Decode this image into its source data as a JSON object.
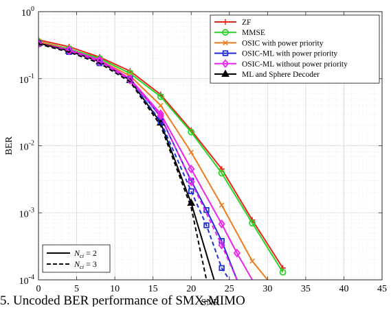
{
  "chart_data": {
    "type": "line",
    "xlabel": "SNR",
    "ylabel": "BER",
    "xlim": [
      0,
      45
    ],
    "ylim": [
      0.0001,
      1
    ],
    "yscale": "log",
    "grid": true,
    "minor_grid": true,
    "x_ticks": [
      0,
      5,
      10,
      15,
      20,
      25,
      30,
      35,
      40,
      45
    ],
    "y_ticks": [
      {
        "value": 1,
        "base": "10",
        "exp": "0"
      },
      {
        "value": 0.1,
        "base": "10",
        "exp": "-1"
      },
      {
        "value": 0.01,
        "base": "10",
        "exp": "-2"
      },
      {
        "value": 0.001,
        "base": "10",
        "exp": "-3"
      },
      {
        "value": 0.0001,
        "base": "10",
        "exp": "-4"
      }
    ],
    "legend_position": "top-right",
    "series": [
      {
        "name": "ZF",
        "color": "#e8231c",
        "marker": "plus",
        "dash": "solid",
        "x": [
          0,
          4,
          8,
          12,
          16,
          20,
          24,
          28,
          32
        ],
        "y": [
          0.38,
          0.3,
          0.21,
          0.13,
          0.058,
          0.017,
          0.0045,
          0.00078,
          0.00015
        ]
      },
      {
        "name": "MMSE",
        "color": "#27d427",
        "marker": "circle",
        "dash": "solid",
        "x": [
          0,
          4,
          8,
          12,
          16,
          20,
          24,
          28,
          32
        ],
        "y": [
          0.36,
          0.28,
          0.2,
          0.12,
          0.054,
          0.016,
          0.0039,
          0.0007,
          0.00013
        ]
      },
      {
        "name": "OSIC with power priority",
        "color": "#f07a1a",
        "marker": "x",
        "dash": "solid",
        "x": [
          0,
          4,
          8,
          12,
          16,
          20,
          24,
          28,
          30
        ],
        "y": [
          0.36,
          0.27,
          0.19,
          0.11,
          0.04,
          0.008,
          0.0013,
          0.00019,
          0.0001
        ]
      },
      {
        "name": "OSIC-ML with power priority",
        "color": "#1f2fd6",
        "marker": "square",
        "dash": "solid",
        "x": [
          0,
          4,
          8,
          12,
          16,
          20,
          22,
          24,
          26
        ],
        "y": [
          0.34,
          0.26,
          0.18,
          0.1,
          0.027,
          0.003,
          0.0011,
          0.00038,
          0.0001
        ]
      },
      {
        "name": "OSIC-ML without power priority",
        "color": "#ee22ee",
        "marker": "diamond",
        "dash": "solid",
        "x": [
          0,
          4,
          8,
          12,
          16,
          20,
          24,
          26,
          28
        ],
        "y": [
          0.34,
          0.27,
          0.19,
          0.1,
          0.03,
          0.0045,
          0.00068,
          0.00025,
          0.0001
        ]
      },
      {
        "name": "ML and Sphere Decoder",
        "color": "#000000",
        "marker": "triangle",
        "dash": "solid",
        "x": [
          0,
          4,
          8,
          12,
          16,
          20,
          23
        ],
        "y": [
          0.34,
          0.26,
          0.18,
          0.095,
          0.022,
          0.0014,
          0.0001
        ]
      },
      {
        "color": "#1f2fd6",
        "marker": "square",
        "dash": "dashed",
        "x": [
          0,
          4,
          8,
          12,
          16,
          20,
          22,
          24,
          25
        ],
        "y": [
          0.33,
          0.25,
          0.17,
          0.095,
          0.023,
          0.0021,
          0.00065,
          0.00015,
          0.0001
        ]
      },
      {
        "color": "#ee22ee",
        "marker": "diamond",
        "dash": "dashed",
        "x": [
          0,
          4,
          8,
          12,
          16,
          20,
          24,
          26
        ],
        "y": [
          0.33,
          0.26,
          0.18,
          0.095,
          0.028,
          0.0029,
          0.00033,
          0.0001
        ]
      },
      {
        "color": "#000000",
        "marker": "none",
        "dash": "dashed",
        "x": [
          0,
          4,
          8,
          12,
          16,
          20,
          22
        ],
        "y": [
          0.33,
          0.25,
          0.17,
          0.09,
          0.02,
          0.0012,
          0.0001
        ]
      }
    ],
    "line_style_legend": [
      {
        "label_main": "N",
        "label_sub": "ci",
        "label_rest": " = 2",
        "dash": "solid"
      },
      {
        "label_main": "N",
        "label_sub": "ci",
        "label_rest": " = 3",
        "dash": "dashed"
      }
    ]
  },
  "caption_fragment": "5.   Uncoded BER performance of SMX-MIMO"
}
